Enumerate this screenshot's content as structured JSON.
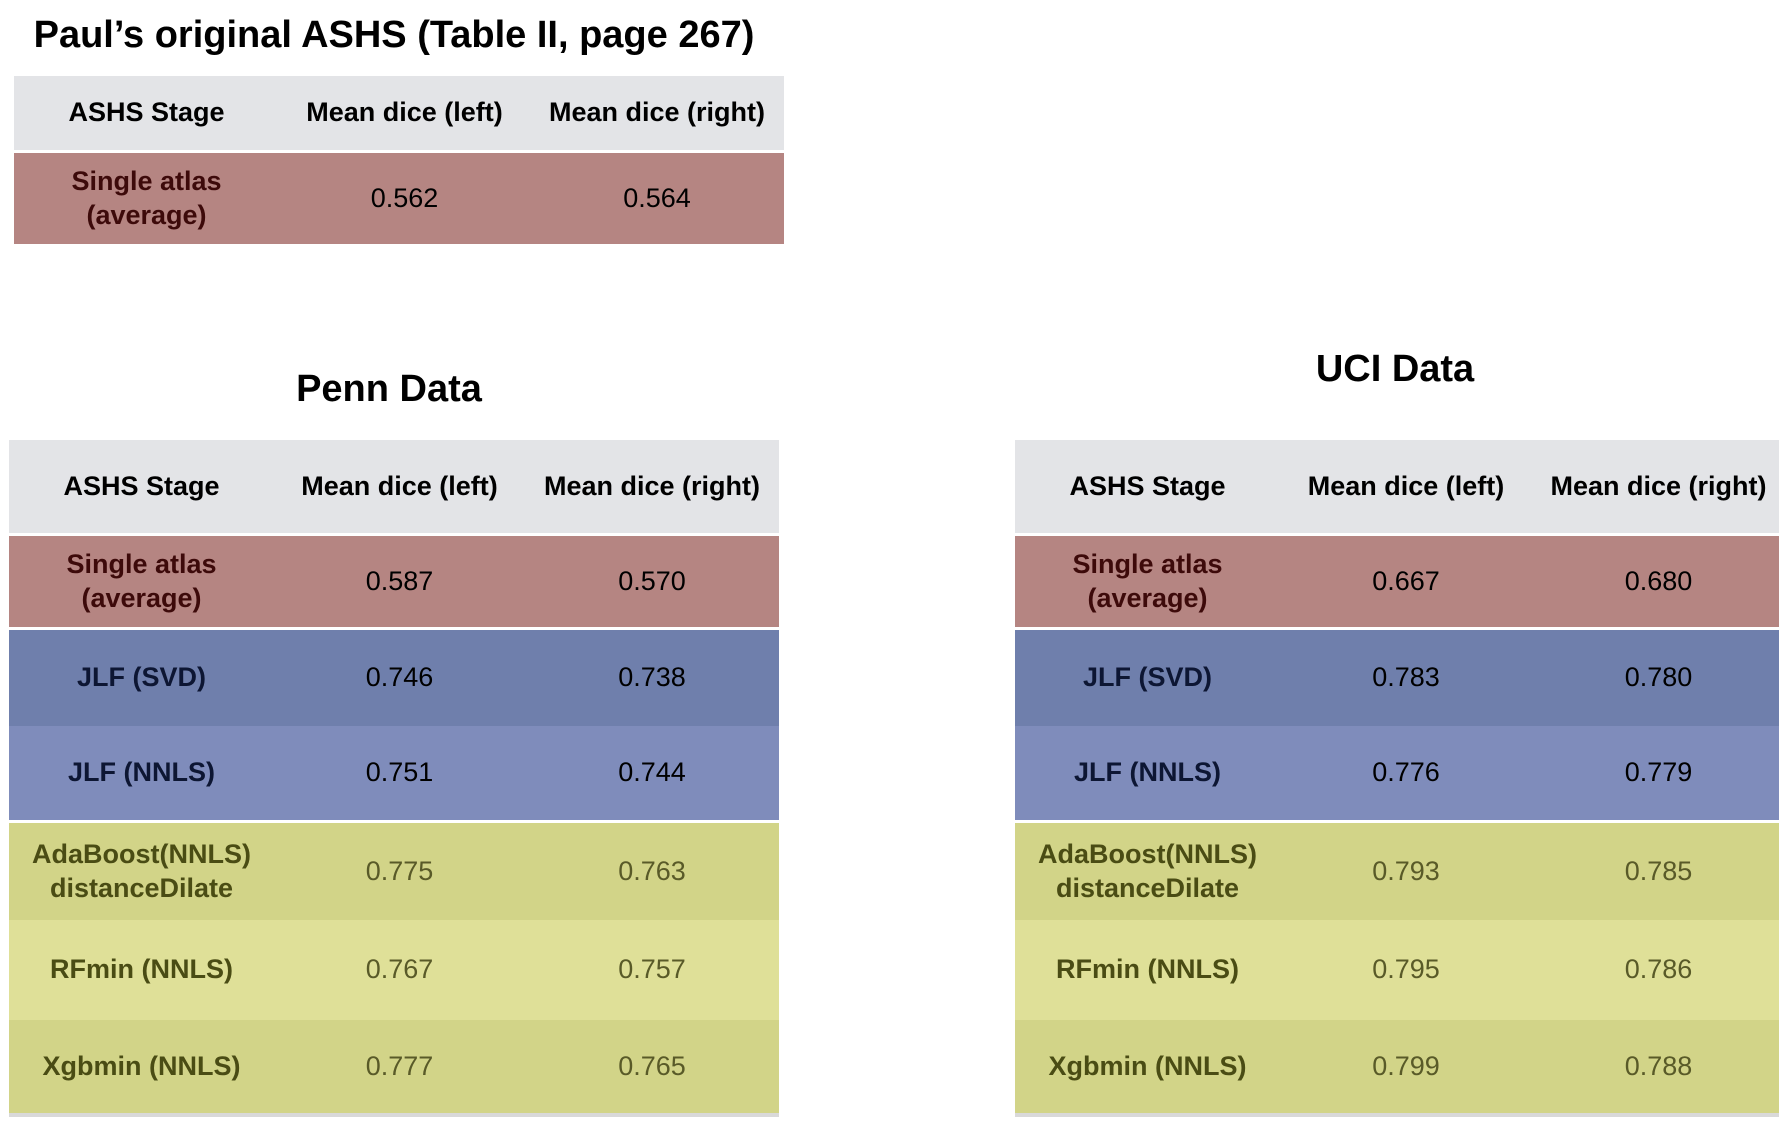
{
  "original": {
    "title": "Paul’s original ASHS (Table II, page 267)",
    "headers": [
      "ASHS Stage",
      "Mean dice (left)",
      "Mean dice (right)"
    ],
    "rows": [
      {
        "stage": "Single atlas (average)",
        "left": "0.562",
        "right": "0.564",
        "group": "single"
      }
    ]
  },
  "penn": {
    "title": "Penn Data",
    "headers": [
      "ASHS Stage",
      "Mean dice (left)",
      "Mean dice (right)"
    ],
    "rows": [
      {
        "stage": "Single atlas (average)",
        "left": "0.587",
        "right": "0.570",
        "group": "single"
      },
      {
        "stage": "JLF (SVD)",
        "left": "0.746",
        "right": "0.738",
        "group": "jlf"
      },
      {
        "stage": "JLF (NNLS)",
        "left": "0.751",
        "right": "0.744",
        "group": "jlf"
      },
      {
        "stage": "AdaBoost(NNLS) distanceDilate",
        "left": "0.775",
        "right": "0.763",
        "group": "boost"
      },
      {
        "stage": "RFmin (NNLS)",
        "left": "0.767",
        "right": "0.757",
        "group": "boost"
      },
      {
        "stage": "Xgbmin (NNLS)",
        "left": "0.777",
        "right": "0.765",
        "group": "boost"
      }
    ]
  },
  "uci": {
    "title": "UCI Data",
    "headers": [
      "ASHS Stage",
      "Mean dice (left)",
      "Mean dice (right)"
    ],
    "rows": [
      {
        "stage": "Single atlas (average)",
        "left": "0.667",
        "right": "0.680",
        "group": "single"
      },
      {
        "stage": "JLF (SVD)",
        "left": "0.783",
        "right": "0.780",
        "group": "jlf"
      },
      {
        "stage": "JLF (NNLS)",
        "left": "0.776",
        "right": "0.779",
        "group": "jlf"
      },
      {
        "stage": "AdaBoost(NNLS) distanceDilate",
        "left": "0.793",
        "right": "0.785",
        "group": "boost"
      },
      {
        "stage": "RFmin (NNLS)",
        "left": "0.795",
        "right": "0.786",
        "group": "boost"
      },
      {
        "stage": "Xgbmin (NNLS)",
        "left": "0.799",
        "right": "0.788",
        "group": "boost"
      }
    ]
  },
  "colors": {
    "header_bg": "#e3e4e7",
    "single_bg": "#b58582",
    "jlf_svd_bg": "#6f7fac",
    "jlf_nnls_bg": "#7f8cbb",
    "boost_bg": "#d2d488",
    "boost_alt_bg": "#dfe098"
  }
}
